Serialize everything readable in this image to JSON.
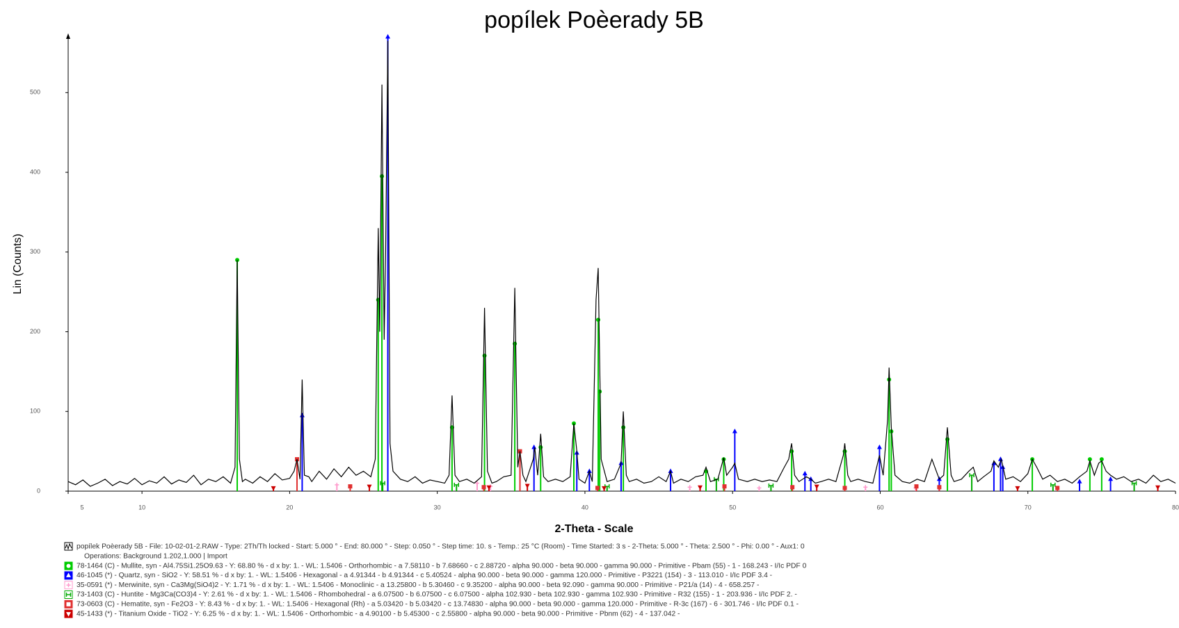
{
  "chart_data": {
    "type": "line",
    "title": "popílek Poèerady 5B",
    "x_label": "2-Theta - Scale",
    "y_label": "Lin (Counts)",
    "xlim": [
      5,
      80
    ],
    "ylim": [
      0,
      570
    ],
    "xticks": [
      5,
      10,
      20,
      30,
      40,
      50,
      60,
      70,
      80
    ],
    "yticks": [
      0,
      100,
      200,
      300,
      400,
      500
    ],
    "operations": "Operations: Background 1.202,1.000 | Import",
    "series": [
      {
        "name": "popílek Poèerady 5B - File: 10-02-01-2.RAW - Type: 2Th/Th locked - Start: 5.000 ° - End: 80.000 ° - Step: 0.050 ° - Step time: 10. s - Temp.: 25 °C (Room) - Time Started: 3 s - 2-Theta: 5.000 ° - Theta: 2.500 ° - Phi: 0.00 ° - Aux1: 0",
        "type": "line",
        "color": "#000000",
        "marker": "pattern",
        "x": [
          5,
          5.5,
          6,
          6.5,
          7,
          7.5,
          8,
          8.5,
          9,
          9.5,
          10,
          10.5,
          11,
          11.5,
          12,
          12.5,
          13,
          13.5,
          14,
          14.5,
          15,
          15.5,
          16,
          16.3,
          16.45,
          16.6,
          16.8,
          17,
          17.5,
          18,
          18.5,
          19,
          19.5,
          20,
          20.3,
          20.5,
          20.7,
          20.85,
          21,
          21.3,
          21.5,
          22,
          22.5,
          23,
          23.5,
          24,
          24.5,
          25,
          25.5,
          25.8,
          26,
          26.1,
          26.25,
          26.4,
          26.5,
          26.65,
          26.8,
          27,
          27.5,
          28,
          28.5,
          29,
          29.5,
          30,
          30.5,
          30.8,
          31,
          31.2,
          31.5,
          32,
          32.5,
          33,
          33.2,
          33.4,
          33.7,
          34,
          34.5,
          35,
          35.25,
          35.45,
          35.6,
          35.8,
          36,
          36.5,
          36.6,
          36.8,
          37,
          37.2,
          37.5,
          38,
          38.5,
          39,
          39.25,
          39.45,
          39.6,
          40,
          40.3,
          40.5,
          40.75,
          40.9,
          41.1,
          41.5,
          42,
          42.45,
          42.6,
          42.8,
          43,
          43.5,
          44,
          44.5,
          45,
          45.5,
          45.8,
          46,
          46.5,
          47,
          47.5,
          48,
          48.2,
          48.5,
          49,
          49.4,
          49.6,
          50,
          50.15,
          50.4,
          51,
          51.5,
          52,
          52.5,
          53,
          53.5,
          53.8,
          54,
          54.2,
          54.5,
          55,
          55.3,
          55.6,
          56,
          56.5,
          57,
          57.5,
          57.6,
          57.8,
          58,
          58.5,
          59,
          59.5,
          59.95,
          60.2,
          60.5,
          60.6,
          60.75,
          61,
          61.5,
          62,
          62.5,
          63,
          63.5,
          63.7,
          64,
          64.3,
          64.55,
          64.8,
          65,
          65.5,
          66,
          66.3,
          66.6,
          67,
          67.5,
          67.7,
          68,
          68.2,
          68.5,
          69,
          69.5,
          70,
          70.3,
          70.6,
          71,
          71.5,
          72,
          72.5,
          73,
          73.5,
          74,
          74.2,
          74.5,
          74.8,
          75,
          75.3,
          75.6,
          76,
          76.5,
          77,
          77.5,
          78,
          78.5,
          79,
          79.5,
          80
        ],
        "values": [
          12,
          8,
          14,
          6,
          10,
          15,
          7,
          12,
          9,
          16,
          8,
          13,
          10,
          18,
          9,
          14,
          11,
          20,
          8,
          15,
          12,
          18,
          10,
          30,
          290,
          40,
          12,
          15,
          10,
          18,
          12,
          22,
          14,
          16,
          25,
          40,
          15,
          140,
          20,
          18,
          12,
          25,
          15,
          28,
          18,
          30,
          20,
          25,
          18,
          40,
          330,
          200,
          510,
          190,
          300,
          565,
          60,
          25,
          15,
          12,
          18,
          10,
          14,
          12,
          10,
          20,
          120,
          20,
          12,
          15,
          10,
          18,
          230,
          25,
          10,
          12,
          18,
          20,
          255,
          30,
          50,
          20,
          12,
          40,
          55,
          20,
          72,
          18,
          12,
          15,
          12,
          18,
          85,
          50,
          15,
          10,
          25,
          12,
          240,
          280,
          40,
          12,
          15,
          35,
          100,
          20,
          12,
          15,
          10,
          12,
          18,
          12,
          25,
          10,
          15,
          12,
          18,
          20,
          30,
          12,
          15,
          42,
          20,
          30,
          35,
          15,
          12,
          15,
          12,
          14,
          12,
          30,
          40,
          60,
          20,
          12,
          18,
          15,
          10,
          12,
          15,
          12,
          45,
          60,
          20,
          12,
          15,
          12,
          10,
          45,
          20,
          90,
          155,
          80,
          20,
          12,
          10,
          15,
          12,
          40,
          30,
          15,
          20,
          80,
          20,
          12,
          15,
          25,
          30,
          12,
          18,
          25,
          38,
          30,
          40,
          15,
          18,
          12,
          22,
          40,
          30,
          15,
          20,
          12,
          15,
          10,
          18,
          25,
          38,
          20,
          35,
          38,
          25,
          20,
          15,
          18,
          12,
          15,
          10,
          20,
          12,
          15,
          10
        ]
      },
      {
        "name": "78-1464 (C) - Mullite, syn - Al4.75Si1.25O9.63 - Y: 68.80 % - d x by: 1. - WL: 1.5406 - Orthorhombic - a 7.58110 - b 7.68660 - c 2.88720 - alpha 90.000 - beta 90.000 - gamma 90.000 - Primitive - Pbam (55) - 1 - 168.243 - I/Ic PDF 0",
        "type": "stick",
        "color": "#00cc00",
        "marker": "circle",
        "x": [
          16.45,
          26.0,
          26.25,
          31.0,
          33.2,
          35.25,
          37.0,
          39.25,
          40.9,
          41.0,
          42.6,
          48.2,
          49.4,
          54.0,
          57.6,
          60.6,
          60.75,
          64.55,
          70.3,
          74.2,
          75.0
        ],
        "values": [
          290,
          240,
          395,
          80,
          170,
          185,
          55,
          85,
          215,
          125,
          80,
          25,
          40,
          50,
          50,
          140,
          75,
          65,
          40,
          40,
          40
        ]
      },
      {
        "name": "46-1045 (*) - Quartz, syn - SiO2 - Y: 58.51 % - d x by: 1. - WL: 1.5406 - Hexagonal - a 4.91344 - b 4.91344 - c 5.40524 - alpha 90.000 - beta 90.000 - gamma 120.000 - Primitive - P3221 (154) - 3 - 113.010 - I/Ic PDF 3.4 -",
        "type": "stick",
        "color": "#0000ff",
        "marker": "triangle",
        "x": [
          20.85,
          26.65,
          36.55,
          39.45,
          40.3,
          42.45,
          45.8,
          50.15,
          54.9,
          55.3,
          59.95,
          64.0,
          67.7,
          68.15,
          68.3,
          73.5,
          75.6
        ],
        "values": [
          95,
          570,
          55,
          48,
          25,
          35,
          25,
          75,
          22,
          15,
          55,
          15,
          35,
          40,
          30,
          12,
          15
        ]
      },
      {
        "name": "35-0591 (*) - Merwinite, syn - Ca3Mg(SiO4)2 - Y: 1.71 % - d x by: 1. - WL: 1.5406 - Monoclinic - a 13.25800 - b 5.30460 - c 9.35200 - alpha 90.000 - beta 92.090 - gamma 90.000 - Primitive - P21/a (14) - 4 - 658.257 -",
        "type": "stick",
        "color": "#ff99cc",
        "marker": "plus",
        "x": [
          23.2,
          32.7,
          33.6,
          47.1,
          51.8,
          59.0,
          62.4
        ],
        "values": [
          8,
          10,
          6,
          5,
          4,
          5,
          4
        ]
      },
      {
        "name": "73-1403 (C) - Huntite - Mg3Ca(CO3)4 - Y: 2.61 % - d x by: 1. - WL: 1.5406 - Rhombohedral - a 6.07500 - b 6.07500 - c 6.07500 - alpha 102.930 - beta 102.930 - gamma 102.930 - Primitive - R32 (155) - 1 - 203.936 - I/Ic PDF 2. -",
        "type": "stick",
        "color": "#00aa00",
        "marker": "hbox",
        "x": [
          26.3,
          31.3,
          41.5,
          48.9,
          52.6,
          66.2,
          71.7,
          77.2
        ],
        "values": [
          10,
          8,
          6,
          15,
          7,
          20,
          8,
          10
        ]
      },
      {
        "name": "73-0603 (C) - Hematite, syn - Fe2O3 - Y: 8.43 % - d x by: 1. - WL: 1.5406 - Hexagonal (Rh) - a 5.03420 - b 5.03420 - c 13.74830 - alpha 90.000 - beta 90.000 - gamma 120.000 - Primitive - R-3c (167) - 6 - 301.746 - I/Ic PDF 0.1 -",
        "type": "stick",
        "color": "#e03030",
        "marker": "square",
        "x": [
          20.5,
          24.1,
          33.15,
          35.6,
          40.85,
          49.45,
          54.05,
          57.6,
          62.45,
          64.0,
          72.0
        ],
        "values": [
          40,
          6,
          5,
          50,
          4,
          6,
          5,
          4,
          6,
          5,
          4
        ]
      },
      {
        "name": "45-1433 (*) - Titanium Oxide - TiO2 - Y: 6.25 % - d x by: 1. - WL: 1.5406 - Orthorhombic - a 4.90100 - b 5.45300 - c 2.55800 - alpha 90.000 - beta 90.000 - Primitive - Pbnm (62) - 4 - 137.042 -",
        "type": "stick",
        "color": "#cc0000",
        "marker": "tridown",
        "x": [
          18.9,
          25.4,
          33.5,
          36.1,
          41.3,
          47.8,
          55.7,
          69.3,
          78.8
        ],
        "values": [
          4,
          6,
          5,
          7,
          4,
          5,
          6,
          4,
          5
        ]
      }
    ]
  }
}
